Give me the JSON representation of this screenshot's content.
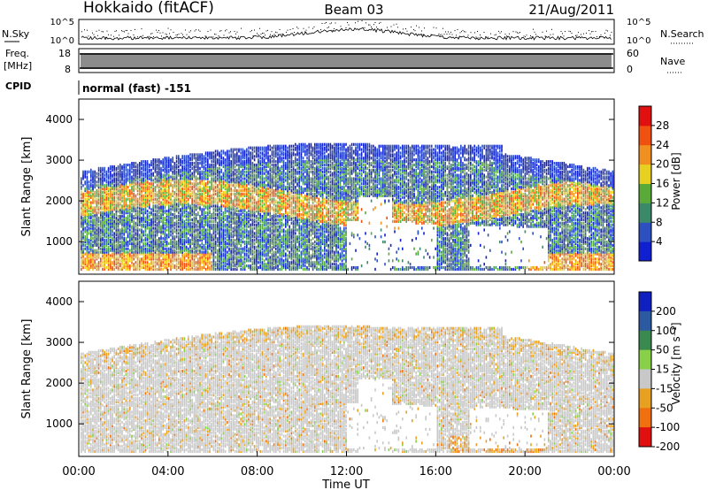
{
  "header": {
    "station": "Hokkaido (fitACF)",
    "beam": "Beam 03",
    "date": "21/Aug/2011"
  },
  "aux_panels": {
    "nsky_label": "N.Sky",
    "nsearch_label": "N.Search",
    "nsky_ticks": [
      "10^5",
      "10^0"
    ],
    "nsearch_ticks": [
      "10^5",
      "10^0"
    ],
    "freq_label": "Freq.",
    "freq_unit": "[MHz]",
    "freq_ticks": [
      "18",
      "8"
    ],
    "nave_label": "Nave",
    "nave_ticks": [
      "60",
      "0"
    ],
    "cpid_label": "CPID",
    "cpid_value": "normal (fast) -151"
  },
  "colors": {
    "power_scale": [
      "#1020d0",
      "#2c50c0",
      "#3a8a6a",
      "#5aaa3a",
      "#e8d020",
      "#f09020",
      "#f05010",
      "#e01010"
    ],
    "velocity_scale": [
      "#1020c0",
      "#2c5aa0",
      "#3a8a50",
      "#88d048",
      "#c8c8c8",
      "#e8a020",
      "#f07010",
      "#e01010"
    ]
  },
  "chart_data": [
    {
      "type": "heatmap",
      "name": "power",
      "ylabel": "Slant Range [km]",
      "ylim": [
        200,
        4500
      ],
      "yticks": [
        "1000",
        "2000",
        "3000",
        "4000"
      ],
      "colorbar_label": "Power [dB]",
      "colorbar_ticks": [
        "4",
        "8",
        "12",
        "16",
        "20",
        "24",
        "28"
      ],
      "colorbar_range": [
        0,
        32
      ]
    },
    {
      "type": "heatmap",
      "name": "velocity",
      "ylabel": "Slant Range [km]",
      "ylim": [
        200,
        4500
      ],
      "yticks": [
        "1000",
        "2000",
        "3000",
        "4000"
      ],
      "colorbar_label": "Velocity [m s⁻¹]",
      "colorbar_ticks": [
        "200",
        "100",
        "50",
        "15",
        "-15",
        "-50",
        "-100",
        "-200"
      ],
      "colorbar_range": [
        -300,
        300
      ]
    }
  ],
  "xaxis": {
    "label": "Time UT",
    "ticks": [
      "00:00",
      "04:00",
      "08:00",
      "12:00",
      "16:00",
      "20:00",
      "00:00"
    ],
    "range_hours": [
      0,
      24
    ]
  }
}
